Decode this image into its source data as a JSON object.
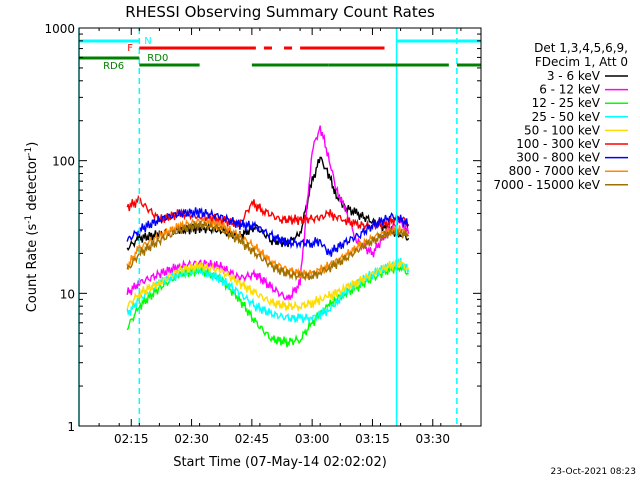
{
  "chart_data": {
    "type": "line",
    "title": "RHESSI Observing Summary Count Rates",
    "xlabel": "Start Time (07-May-14 02:02:02)",
    "ylabel_main": "Count Rate (s",
    "ylabel_sup1": "-1",
    "ylabel_mid": " detector",
    "ylabel_sup2": "-1",
    "ylabel_end": ")",
    "y_scale": "log",
    "ylim": [
      1,
      1000
    ],
    "xlim": [
      "02:02",
      "03:42"
    ],
    "x_ticks": [
      "02:15",
      "02:30",
      "02:45",
      "03:00",
      "03:15",
      "03:30"
    ],
    "y_ticks": [
      "1",
      "10",
      "100",
      "1000"
    ],
    "grid": false,
    "legend_header": [
      "Det 1,3,4,5,6,9,",
      "FDecim 1, Att 0"
    ],
    "legend_position": "right",
    "timestamp": "23-Oct-2021 08:23",
    "series": [
      {
        "name": "3 - 6 keV",
        "color": "#000000",
        "x": [
          "02:14",
          "02:17",
          "02:22",
          "02:27",
          "02:32",
          "02:37",
          "02:42",
          "02:46",
          "02:50",
          "02:54",
          "02:57",
          "03:00",
          "03:02",
          "03:04",
          "03:06",
          "03:08",
          "03:11",
          "03:15",
          "03:19",
          "03:22",
          "03:24"
        ],
        "values": [
          22,
          26,
          28,
          30,
          31,
          30,
          27,
          32,
          25,
          24,
          28,
          70,
          105,
          80,
          55,
          45,
          40,
          35,
          30,
          28,
          26
        ]
      },
      {
        "name": "6 - 12 keV",
        "color": "#ff00ff",
        "x": [
          "02:14",
          "02:17",
          "02:22",
          "02:27",
          "02:32",
          "02:37",
          "02:42",
          "02:46",
          "02:50",
          "02:54",
          "02:57",
          "03:00",
          "03:02",
          "03:04",
          "03:06",
          "03:08",
          "03:11",
          "03:15",
          "03:19",
          "03:22",
          "03:24"
        ],
        "values": [
          10,
          12,
          14,
          16,
          17,
          16,
          13,
          14,
          11,
          9,
          12,
          120,
          180,
          110,
          60,
          45,
          25,
          20,
          30,
          35,
          28
        ]
      },
      {
        "name": "12 - 25 keV",
        "color": "#00ff00",
        "x": [
          "02:14",
          "02:17",
          "02:22",
          "02:27",
          "02:32",
          "02:37",
          "02:42",
          "02:46",
          "02:50",
          "02:54",
          "02:57",
          "03:00",
          "03:02",
          "03:04",
          "03:06",
          "03:08",
          "03:11",
          "03:15",
          "03:19",
          "03:22",
          "03:24"
        ],
        "values": [
          5.5,
          8,
          11,
          14,
          15,
          13,
          9,
          6,
          4.5,
          4.3,
          4.5,
          6,
          7,
          8,
          9,
          10,
          11,
          13,
          15,
          16,
          14
        ]
      },
      {
        "name": "25 - 50 keV",
        "color": "#00ffff",
        "x": [
          "02:14",
          "02:17",
          "02:22",
          "02:27",
          "02:32",
          "02:37",
          "02:42",
          "02:46",
          "02:50",
          "02:54",
          "02:57",
          "03:00",
          "03:02",
          "03:04",
          "03:06",
          "03:08",
          "03:11",
          "03:15",
          "03:19",
          "03:22",
          "03:24"
        ],
        "values": [
          7,
          9,
          12,
          14,
          15,
          13,
          10,
          8,
          7,
          6.5,
          6.5,
          6.5,
          7,
          7.5,
          8.5,
          10,
          12,
          14,
          16,
          17,
          15
        ]
      },
      {
        "name": "50 - 100 keV",
        "color": "#ffdd00",
        "x": [
          "02:14",
          "02:17",
          "02:22",
          "02:27",
          "02:32",
          "02:37",
          "02:42",
          "02:46",
          "02:50",
          "02:54",
          "02:57",
          "03:00",
          "03:02",
          "03:04",
          "03:06",
          "03:08",
          "03:11",
          "03:15",
          "03:19",
          "03:22",
          "03:24"
        ],
        "values": [
          8,
          10,
          12,
          15,
          16,
          15,
          12,
          10,
          8.5,
          8,
          8,
          8.5,
          9,
          9.5,
          10,
          11,
          12,
          14,
          16,
          17,
          15
        ]
      },
      {
        "name": "100 - 300 keV",
        "color": "#ff0000",
        "x": [
          "02:14",
          "02:17",
          "02:22",
          "02:27",
          "02:32",
          "02:37",
          "02:42",
          "02:45",
          "02:48",
          "02:52",
          "02:57",
          "03:02",
          "03:04",
          "03:06",
          "03:08",
          "03:11",
          "03:15",
          "03:19",
          "03:22",
          "03:24"
        ],
        "values": [
          45,
          50,
          36,
          40,
          38,
          36,
          33,
          48,
          42,
          36,
          36,
          37,
          40,
          38,
          36,
          33,
          32,
          34,
          38,
          33
        ]
      },
      {
        "name": "300 - 800 keV",
        "color": "#0000ff",
        "x": [
          "02:14",
          "02:17",
          "02:22",
          "02:27",
          "02:32",
          "02:37",
          "02:42",
          "02:46",
          "02:50",
          "02:54",
          "02:57",
          "03:00",
          "03:02",
          "03:04",
          "03:08",
          "03:12",
          "03:16",
          "03:20",
          "03:22",
          "03:24"
        ],
        "values": [
          25,
          30,
          36,
          40,
          41,
          38,
          33,
          32,
          27,
          24,
          24,
          24,
          25,
          20,
          24,
          28,
          34,
          38,
          36,
          33
        ]
      },
      {
        "name": "800 - 7000 keV",
        "color": "#ff8800",
        "x": [
          "02:14",
          "02:17",
          "02:22",
          "02:27",
          "02:32",
          "02:37",
          "02:42",
          "02:46",
          "02:50",
          "02:54",
          "02:57",
          "03:00",
          "03:02",
          "03:04",
          "03:08",
          "03:12",
          "03:16",
          "03:20",
          "03:22",
          "03:24"
        ],
        "values": [
          16,
          22,
          27,
          32,
          35,
          33,
          27,
          22,
          17,
          15,
          14,
          14,
          15,
          16,
          19,
          23,
          27,
          30,
          30,
          28
        ]
      },
      {
        "name": "7000 - 15000 keV",
        "color": "#a07000",
        "x": [
          "02:14",
          "02:17",
          "02:22",
          "02:27",
          "02:32",
          "02:37",
          "02:42",
          "02:46",
          "02:50",
          "02:54",
          "02:57",
          "03:00",
          "03:02",
          "03:04",
          "03:08",
          "03:12",
          "03:16",
          "03:20",
          "03:22",
          "03:24"
        ],
        "values": [
          15,
          20,
          25,
          30,
          33,
          31,
          25,
          20,
          16,
          14,
          13.5,
          13.5,
          14.5,
          15.5,
          18,
          22,
          26,
          29,
          29,
          27
        ]
      }
    ],
    "annotations": {
      "night_label": "N",
      "flare_label": "F",
      "rd0_label": "RD0",
      "rd6_label": "RD6",
      "night_color": "#00ffff",
      "flare_color": "#ff0000",
      "rd_color": "#008000",
      "night_vlines": [
        "02:02",
        "02:17",
        "03:21",
        "03:36"
      ],
      "night_bars": [
        [
          "02:02",
          "02:17"
        ],
        [
          "03:21",
          "03:42"
        ]
      ],
      "flare_bars": [
        [
          "02:17",
          "02:46"
        ],
        [
          "02:48",
          "02:50"
        ],
        [
          "02:53",
          "02:55"
        ],
        [
          "02:57",
          "03:18"
        ]
      ],
      "rd0_bar": [
        [
          "02:02",
          "02:17"
        ]
      ],
      "rd6_bars": [
        [
          "02:17",
          "02:32"
        ],
        [
          "02:45",
          "03:04"
        ],
        [
          "03:04",
          "03:34"
        ],
        [
          "03:36",
          "03:42"
        ]
      ]
    }
  }
}
